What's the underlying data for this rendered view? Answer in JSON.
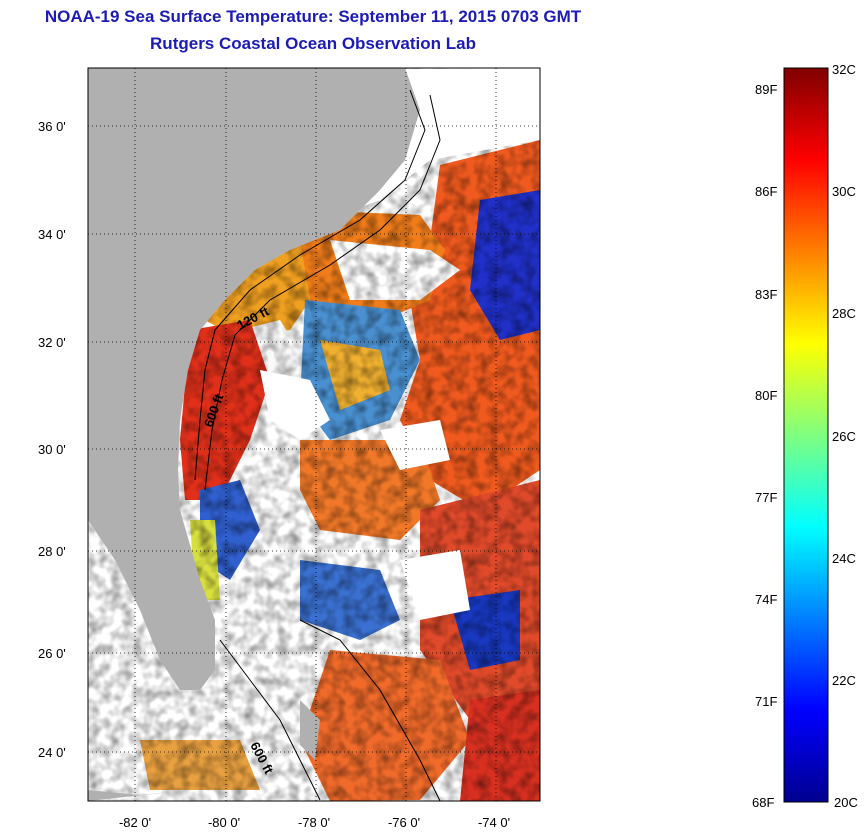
{
  "header": {
    "title": "NOAA-19 Sea Surface Temperature:  September 11, 2015 0703 GMT",
    "subtitle": "Rutgers Coastal Ocean Observation Lab"
  },
  "map": {
    "lat_ticks": [
      "36 0'",
      "34 0'",
      "32 0'",
      "30 0'",
      "28 0'",
      "26 0'",
      "24 0'"
    ],
    "lon_ticks": [
      "-82 0'",
      "-80 0'",
      "-78 0'",
      "-76 0'",
      "-74 0'"
    ],
    "contour_labels": [
      "120 ft",
      "600 ft",
      "600 ft"
    ],
    "land_color": "#b0b0b0",
    "nodata_color": "#ffffff"
  },
  "colorbar": {
    "fahrenheit_labels": [
      "89F",
      "86F",
      "83F",
      "80F",
      "77F",
      "74F",
      "71F",
      "68F"
    ],
    "celsius_labels": [
      "32C",
      "30C",
      "28C",
      "26C",
      "24C",
      "22C",
      "20C"
    ],
    "range_celsius": [
      20,
      32
    ],
    "colormap": "jet"
  }
}
